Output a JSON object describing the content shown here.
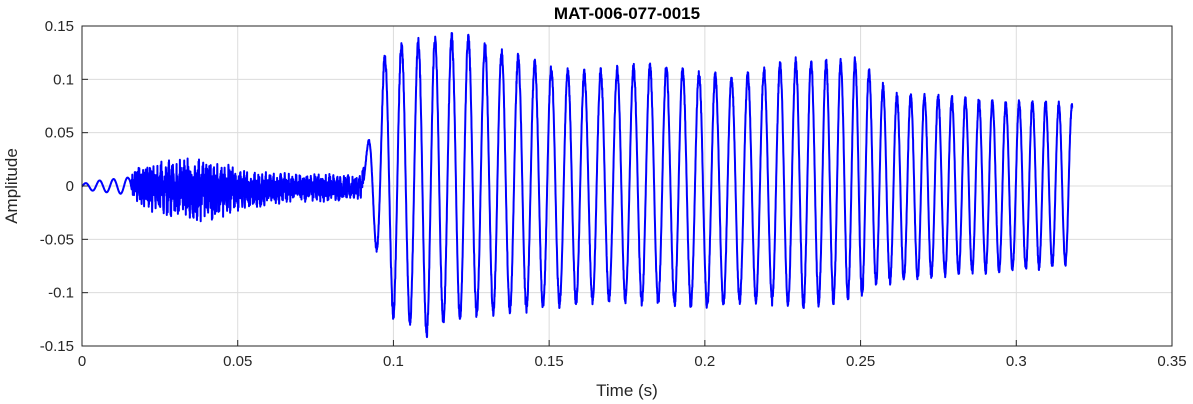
{
  "chart_data": {
    "type": "line",
    "title": "MAT-006-077-0015",
    "xlabel": "Time (s)",
    "ylabel": "Amplitude",
    "xlim": [
      0,
      0.35
    ],
    "ylim": [
      -0.15,
      0.15
    ],
    "xticks": [
      0,
      0.05,
      0.1,
      0.15,
      0.2,
      0.25,
      0.3,
      0.35
    ],
    "xtick_labels": [
      "0",
      "0.05",
      "0.1",
      "0.15",
      "0.2",
      "0.25",
      "0.3",
      "0.35"
    ],
    "yticks": [
      -0.15,
      -0.1,
      -0.05,
      0,
      0.05,
      0.1,
      0.15
    ],
    "ytick_labels": [
      "-0.15",
      "-0.1",
      "-0.05",
      "0",
      "0.05",
      "0.1",
      "0.15"
    ],
    "grid": true,
    "line_color": "#0000ff",
    "series": [
      {
        "x_start": 0,
        "x_end": 0.318,
        "envelope": {
          "time": [
            0,
            0.005,
            0.015,
            0.018,
            0.03,
            0.04,
            0.05,
            0.06,
            0.07,
            0.08,
            0.089,
            0.091,
            0.094,
            0.097,
            0.1,
            0.105,
            0.11,
            0.115,
            0.12,
            0.125,
            0.13,
            0.14,
            0.15,
            0.16,
            0.17,
            0.18,
            0.19,
            0.2,
            0.21,
            0.22,
            0.23,
            0.24,
            0.25,
            0.255,
            0.26,
            0.27,
            0.28,
            0.29,
            0.3,
            0.31,
            0.318
          ],
          "max": [
            0.002,
            0.005,
            0.008,
            0.022,
            0.025,
            0.028,
            0.018,
            0.014,
            0.012,
            0.012,
            0.01,
            0.028,
            0.072,
            0.12,
            0.13,
            0.133,
            0.135,
            0.138,
            0.14,
            0.138,
            0.13,
            0.12,
            0.11,
            0.105,
            0.108,
            0.112,
            0.11,
            0.105,
            0.1,
            0.11,
            0.117,
            0.115,
            0.118,
            0.1,
            0.085,
            0.085,
            0.082,
            0.08,
            0.078,
            0.078,
            0.075
          ],
          "min": [
            -0.003,
            -0.005,
            -0.008,
            -0.02,
            -0.032,
            -0.035,
            -0.025,
            -0.018,
            -0.015,
            -0.015,
            -0.012,
            -0.015,
            -0.055,
            -0.078,
            -0.122,
            -0.125,
            -0.14,
            -0.128,
            -0.125,
            -0.12,
            -0.118,
            -0.115,
            -0.112,
            -0.108,
            -0.105,
            -0.108,
            -0.11,
            -0.112,
            -0.108,
            -0.107,
            -0.112,
            -0.108,
            -0.102,
            -0.09,
            -0.09,
            -0.085,
            -0.082,
            -0.08,
            -0.078,
            -0.075,
            -0.072
          ]
        },
        "oscillation_periods": [
          [
            0.09,
            0.0054
          ],
          [
            0.22,
            0.0052
          ],
          [
            0.25,
            0.0045
          ],
          [
            0.318,
            0.0042
          ]
        ]
      }
    ]
  }
}
